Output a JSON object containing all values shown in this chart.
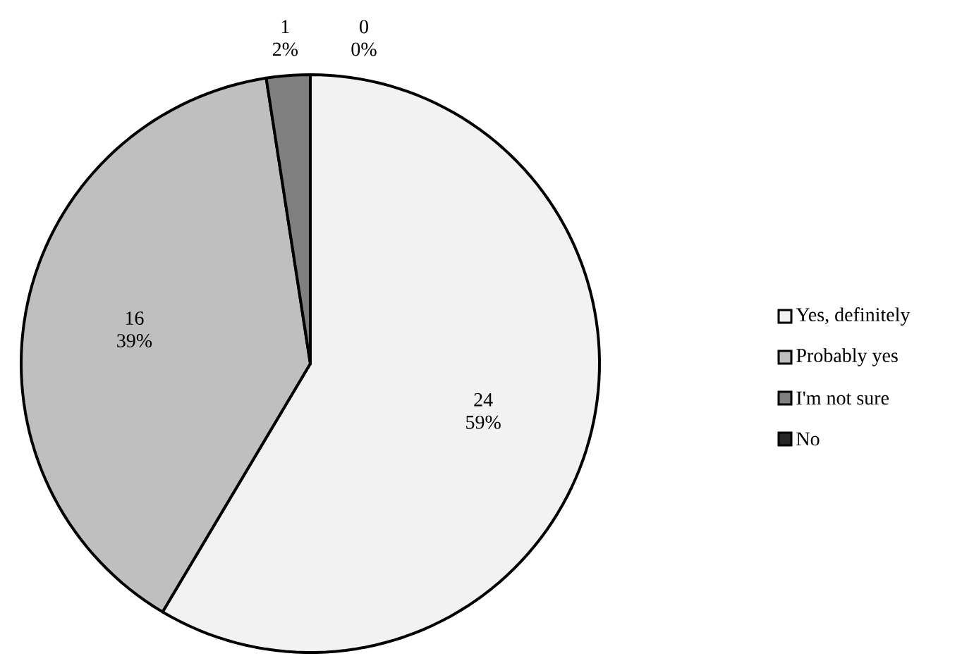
{
  "chart_data": {
    "type": "pie",
    "categories": [
      "Yes, definitely",
      "Probably yes",
      "I'm not sure",
      "No"
    ],
    "values": [
      24,
      16,
      1,
      0
    ],
    "value_labels": [
      "24 59%",
      "16 39%",
      "1 2%",
      "0 0%"
    ],
    "colors": [
      "#f2f2f2",
      "#bfbfbf",
      "#808080",
      "#262626"
    ],
    "legend": "right"
  }
}
